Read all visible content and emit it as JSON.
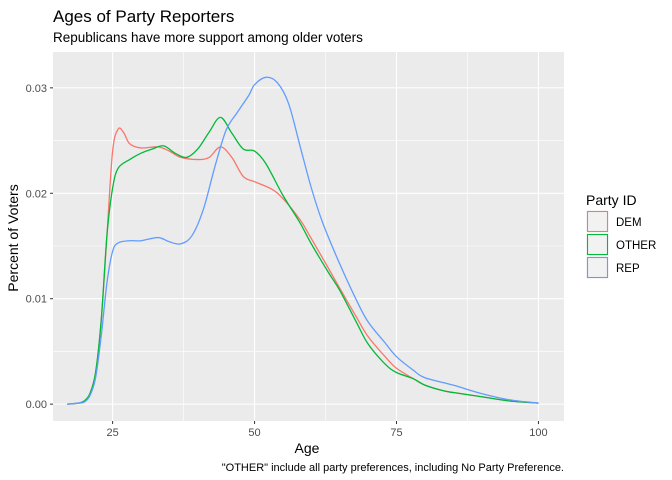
{
  "chart_data": {
    "type": "line",
    "title": "Ages of Party Reporters",
    "subtitle": "Republicans have more support among older voters",
    "xlabel": "Age",
    "ylabel": "Percent of Voters",
    "caption": "\"OTHER\" include all party preferences, including No Party Preference.",
    "xlim": [
      14.5,
      104.5
    ],
    "ylim": [
      -0.0016,
      0.0334
    ],
    "x_ticks": [
      25,
      50,
      75,
      100
    ],
    "x_tick_labels": [
      "25",
      "50",
      "75",
      "100"
    ],
    "y_ticks": [
      0.0,
      0.01,
      0.02,
      0.03
    ],
    "y_tick_labels": [
      "0.00",
      "0.01",
      "0.02",
      "0.03"
    ],
    "grid": true,
    "legend": {
      "title": "Party ID",
      "position": "right"
    },
    "series": [
      {
        "name": "DEM",
        "color": "#F8766D",
        "x": [
          17,
          19,
          20,
          21,
          22,
          23,
          24,
          25,
          26,
          27,
          28,
          30,
          33,
          35,
          37,
          40,
          42,
          44,
          46,
          48,
          50,
          53,
          55,
          58,
          60,
          63,
          65,
          68,
          70,
          73,
          75,
          78,
          80,
          83,
          85,
          90,
          95,
          100
        ],
        "y": [
          0.0,
          0.0001,
          0.0003,
          0.001,
          0.003,
          0.008,
          0.016,
          0.024,
          0.0261,
          0.0257,
          0.0247,
          0.0243,
          0.0244,
          0.024,
          0.0234,
          0.0232,
          0.0234,
          0.0244,
          0.0234,
          0.0216,
          0.0211,
          0.0204,
          0.0195,
          0.0175,
          0.0157,
          0.0129,
          0.011,
          0.0082,
          0.0064,
          0.0045,
          0.0034,
          0.0024,
          0.0018,
          0.0013,
          0.0011,
          0.0007,
          0.0003,
          0.0001
        ]
      },
      {
        "name": "OTHER",
        "color": "#00BA38",
        "x": [
          17,
          19,
          20,
          21,
          22,
          23,
          24,
          25,
          26,
          28,
          30,
          32,
          34,
          36,
          38,
          40,
          42,
          44,
          46,
          48,
          50,
          52,
          55,
          58,
          60,
          63,
          65,
          68,
          70,
          73,
          75,
          78,
          80,
          83,
          85,
          90,
          95,
          100
        ],
        "y": [
          0.0,
          0.0001,
          0.0003,
          0.001,
          0.003,
          0.008,
          0.016,
          0.0205,
          0.0224,
          0.0232,
          0.0238,
          0.0242,
          0.0245,
          0.0238,
          0.0234,
          0.0242,
          0.0258,
          0.0272,
          0.0257,
          0.0242,
          0.024,
          0.0228,
          0.0198,
          0.0172,
          0.0152,
          0.0125,
          0.0108,
          0.0077,
          0.0057,
          0.0038,
          0.003,
          0.0024,
          0.0018,
          0.0013,
          0.0011,
          0.0007,
          0.0003,
          0.0001
        ]
      },
      {
        "name": "REP",
        "color": "#619CFF",
        "x": [
          17,
          19,
          20,
          21,
          22,
          23,
          24,
          25,
          26,
          28,
          30,
          33,
          35,
          37,
          39,
          41,
          43,
          45,
          47,
          49,
          50,
          52,
          54,
          56,
          58,
          60,
          62,
          65,
          68,
          70,
          73,
          75,
          78,
          80,
          85,
          90,
          95,
          100
        ],
        "y": [
          0.0,
          0.0001,
          0.0002,
          0.0008,
          0.0025,
          0.0065,
          0.0115,
          0.0145,
          0.0153,
          0.0155,
          0.0155,
          0.0158,
          0.0154,
          0.0152,
          0.016,
          0.0185,
          0.0225,
          0.026,
          0.0277,
          0.0293,
          0.0303,
          0.031,
          0.0305,
          0.0285,
          0.0245,
          0.0205,
          0.0172,
          0.0133,
          0.0098,
          0.0078,
          0.0058,
          0.0045,
          0.0032,
          0.0025,
          0.0018,
          0.001,
          0.0004,
          0.0001
        ]
      }
    ]
  }
}
